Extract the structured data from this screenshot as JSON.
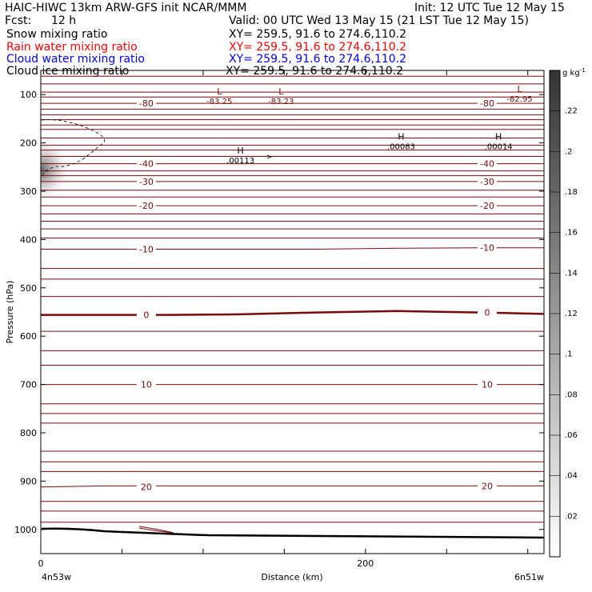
{
  "header": {
    "title_left": "HAIC-HIWC 13km ARW-GFS init   NCAR/MMM",
    "init": "Init: 12 UTC Tue 12 May 15",
    "fcst_label": "Fcst:",
    "fcst_value": "12 h",
    "valid": "Valid: 00 UTC Wed 13 May 15 (21 LST Tue 12 May 15)"
  },
  "fields": [
    {
      "name": "Snow mixing ratio",
      "xy": "XY= 259.5, 91.6 to 274.6,110.2",
      "color": "#000000"
    },
    {
      "name": "Rain water mixing ratio",
      "xy": "XY= 259.5, 91.6 to 274.6,110.2",
      "color": "#ff0000"
    },
    {
      "name": "Cloud water mixing ratio",
      "xy": "XY= 259.5, 91.6 to 274.6,110.2",
      "color": "#0000ff"
    },
    {
      "name": "Cloud ice mixing ratio",
      "xy": "XY= 259.5, 91.6 to 274.6,110.2",
      "color": "#000000"
    }
  ],
  "chart_data": {
    "type": "contour",
    "xlabel": "Distance (km)",
    "ylabel": "Pressure (hPa)",
    "xlim": [
      0,
      310
    ],
    "ylim": [
      1050,
      50
    ],
    "x_ticks": [
      0,
      200
    ],
    "x_minor_step": 50,
    "y_ticks": [
      100,
      200,
      300,
      400,
      500,
      600,
      700,
      800,
      900,
      1000
    ],
    "cross_section_start": "4n53w",
    "cross_section_end": "6n51w",
    "temperature_contours": [
      {
        "label": "-80",
        "p": [
          118,
          118,
          118,
          118,
          118,
          118,
          118,
          118
        ]
      },
      {
        "label": "-40",
        "p": [
          243,
          243,
          243,
          243,
          243,
          243,
          243,
          243
        ]
      },
      {
        "label": "-30",
        "p": [
          280,
          280,
          280,
          280,
          280,
          280,
          280,
          280
        ]
      },
      {
        "label": "-20",
        "p": [
          330,
          330,
          330,
          330,
          330,
          330,
          330,
          330
        ]
      },
      {
        "label": "-10",
        "p": [
          420,
          420,
          420,
          420,
          420,
          418,
          417,
          417
        ]
      },
      {
        "label": "0",
        "p": [
          556,
          556,
          556,
          555,
          551,
          548,
          551,
          554
        ]
      },
      {
        "label": "10",
        "p": [
          700,
          700,
          700,
          700,
          700,
          700,
          700,
          700
        ]
      },
      {
        "label": "20",
        "p": [
          912,
          910,
          910,
          910,
          910,
          910,
          910,
          910
        ]
      }
    ],
    "contour_x": [
      0,
      40,
      80,
      120,
      170,
      220,
      270,
      310
    ],
    "extra_isotherms_p": [
      62,
      78,
      95,
      105,
      130,
      142,
      152,
      163,
      172,
      190,
      205,
      215,
      228,
      258,
      268,
      298,
      312,
      347,
      362,
      378,
      397,
      460,
      482,
      518,
      590,
      630,
      660,
      740,
      760,
      780,
      838,
      860,
      880,
      942,
      962,
      985
    ],
    "extremes": [
      {
        "type": "L",
        "value": "-83.25",
        "x": 110,
        "p": 110
      },
      {
        "type": "L",
        "value": "-83.23",
        "x": 148,
        "p": 110
      },
      {
        "type": "L",
        "value": "-82.95",
        "x": 295,
        "p": 105
      },
      {
        "type": "H",
        "value": ".00113",
        "x": 123,
        "p": 232
      },
      {
        "type": "H",
        "value": ".00083",
        "x": 222,
        "p": 203
      },
      {
        "type": "H",
        "value": ".00014",
        "x": 282,
        "p": 203
      }
    ],
    "colorbar": {
      "unit": "g kg",
      "unit_exp": "-1",
      "ticks": [
        ".02",
        ".04",
        ".06",
        ".08",
        ".1",
        ".12",
        ".14",
        ".16",
        ".18",
        ".2",
        ".22"
      ]
    }
  }
}
